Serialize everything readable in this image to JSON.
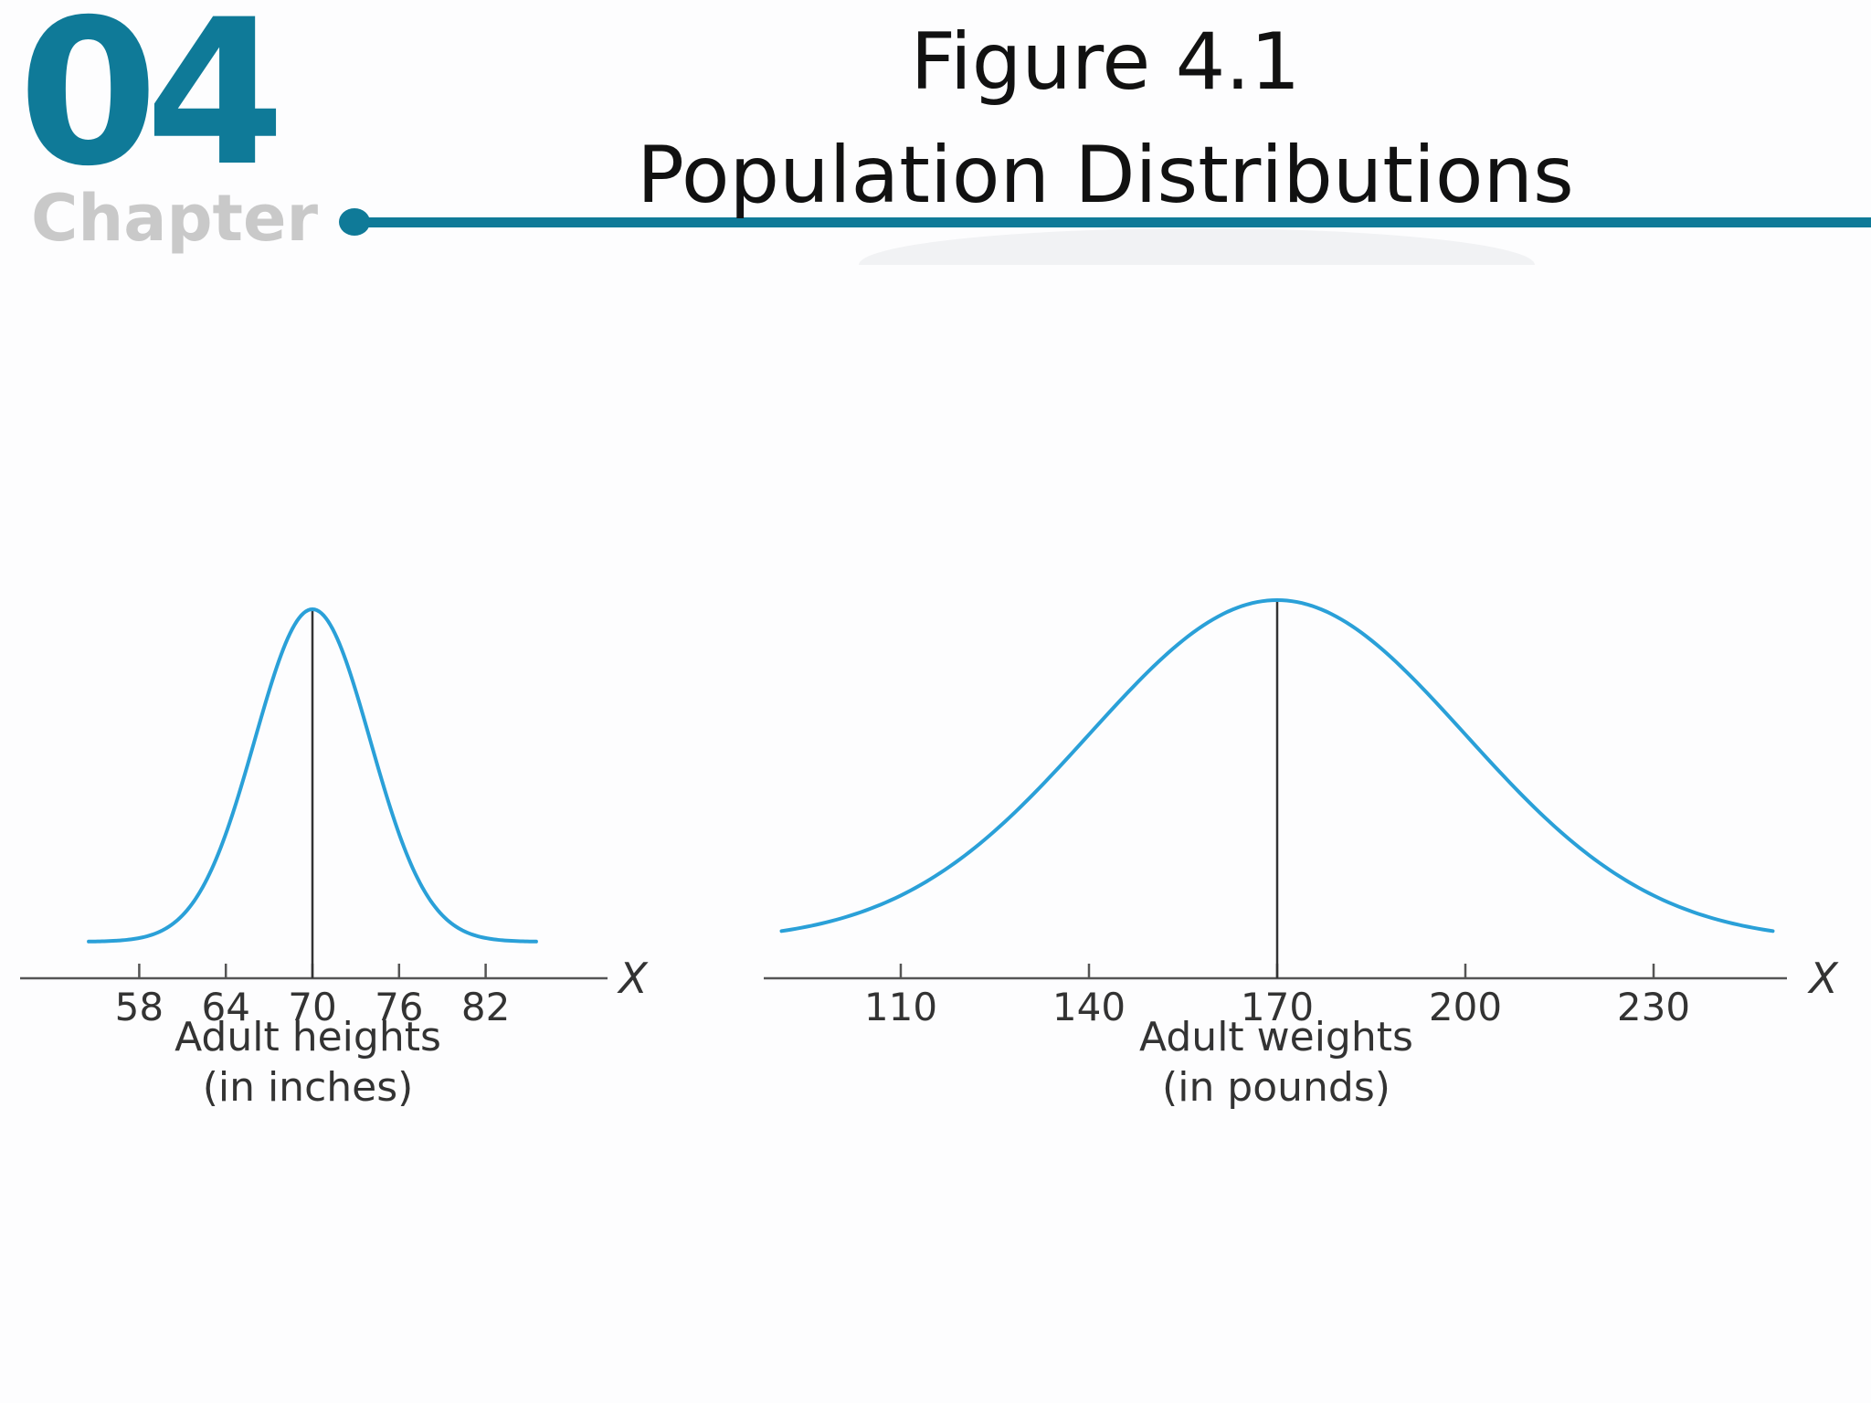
{
  "header": {
    "chapter_number": "04",
    "chapter_word": "Chapter",
    "title_line1": "Figure 4.1",
    "title_line2": "Population Distributions",
    "accent_color": "#0f7a98"
  },
  "chart_data": [
    {
      "type": "line",
      "curve": "normal-distribution",
      "mean": 70,
      "sd": 4,
      "x_range": [
        54.5,
        85.5
      ],
      "xticks": [
        58,
        64,
        70,
        76,
        82
      ],
      "xlabel_line1": "Adult heights",
      "xlabel_line2": "(in inches)",
      "axis_symbol": "X",
      "y_axis": false,
      "line_color": "#2aa0d8"
    },
    {
      "type": "line",
      "curve": "normal-distribution",
      "mean": 170,
      "sd": 30,
      "x_range": [
        91,
        249
      ],
      "xticks": [
        110,
        140,
        170,
        200,
        230
      ],
      "xlabel_line1": "Adult weights",
      "xlabel_line2": "(in pounds)",
      "axis_symbol": "X",
      "y_axis": false,
      "line_color": "#2aa0d8"
    }
  ]
}
